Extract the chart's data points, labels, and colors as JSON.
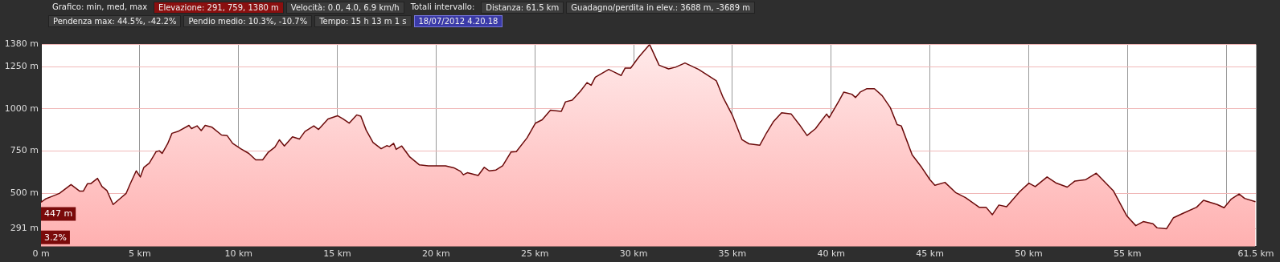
{
  "chart_data": {
    "type": "area",
    "annotations": [
      "Grafico: min, med, max",
      "Elevazione: 291, 759, 1380 m",
      "Velocità: 0.0, 4.0, 6.9 km/h",
      "Totali intervallo:",
      "Distanza: 61.5 km",
      "Guadagno/perdita in elev.: 3688 m, -3689 m",
      "Pendenza max: 44.5%, -42.2%",
      "Pendio medio: 10.3%, -10.7%",
      "Tempo: 15 h 13 m 1 s",
      "18/07/2012 4.20.18",
      {
        "text": "447 m",
        "x": 0,
        "y": 447
      },
      {
        "text": "3.2%",
        "x": 0
      }
    ],
    "x": [
      0,
      0.23,
      0.58,
      0.93,
      1.52,
      1.96,
      2.14,
      2.35,
      2.51,
      2.86,
      3.09,
      3.34,
      3.65,
      4.03,
      4.31,
      4.52,
      4.82,
      5.03,
      5.21,
      5.48,
      5.83,
      5.99,
      6.13,
      6.41,
      6.63,
      6.93,
      7.49,
      7.62,
      7.9,
      8.11,
      8.31,
      8.66,
      9.14,
      9.42,
      9.7,
      10.11,
      10.52,
      10.87,
      11.22,
      11.49,
      11.84,
      12.07,
      12.32,
      12.73,
      13.08,
      13.36,
      13.81,
      14.05,
      14.53,
      15.01,
      15.29,
      15.6,
      15.98,
      16.19,
      16.46,
      16.81,
      17.22,
      17.5,
      17.64,
      17.85,
      17.98,
      18.26,
      18.67,
      19.16,
      19.61,
      20.48,
      20.9,
      21.24,
      21.38,
      21.58,
      22.13,
      22.44,
      22.69,
      23.03,
      23.37,
      23.79,
      24.06,
      24.61,
      25.03,
      25.37,
      25.79,
      26.34,
      26.55,
      26.89,
      27.3,
      27.64,
      27.85,
      28.06,
      28.74,
      29.37,
      29.57,
      29.85,
      30.26,
      30.81,
      31.29,
      31.77,
      32.12,
      32.6,
      33.29,
      34.19,
      34.53,
      35.01,
      35.49,
      35.84,
      36.39,
      36.73,
      37.07,
      37.49,
      37.98,
      38.39,
      38.78,
      39.21,
      39.49,
      39.77,
      39.9,
      40.39,
      40.64,
      41.05,
      41.23,
      41.47,
      41.81,
      42.19,
      42.58,
      42.99,
      43.34,
      43.55,
      44.1,
      44.58,
      45,
      45.25,
      45.76,
      46.32,
      46.8,
      47.49,
      47.84,
      48.16,
      48.49,
      48.88,
      49.57,
      50.01,
      50.33,
      50.93,
      51.37,
      51.95,
      52.34,
      52.89,
      53.42,
      54.28,
      54.97,
      55.42,
      55.8,
      56.29,
      56.5,
      56.98,
      57.33,
      57.81,
      58.5,
      58.85,
      59.54,
      59.89,
      60.26,
      60.65,
      60.93,
      61.48
    ],
    "series": [
      {
        "color": "#6b0a0a",
        "values": [
          447,
          467,
          483,
          500,
          552,
          513,
          513,
          557,
          557,
          589,
          540,
          516,
          434,
          472,
          500,
          557,
          633,
          597,
          654,
          679,
          747,
          752,
          736,
          793,
          855,
          866,
          902,
          883,
          899,
          871,
          902,
          891,
          845,
          842,
          796,
          764,
          736,
          698,
          698,
          741,
          773,
          817,
          780,
          834,
          821,
          866,
          899,
          878,
          940,
          959,
          940,
          915,
          964,
          956,
          874,
          801,
          764,
          782,
          777,
          796,
          760,
          780,
          715,
          668,
          663,
          663,
          651,
          630,
          610,
          622,
          606,
          654,
          633,
          638,
          663,
          744,
          747,
          829,
          915,
          935,
          992,
          985,
          1041,
          1051,
          1103,
          1155,
          1139,
          1187,
          1233,
          1197,
          1241,
          1241,
          1306,
          1380,
          1258,
          1236,
          1246,
          1271,
          1233,
          1165,
          1067,
          959,
          817,
          793,
          785,
          858,
          923,
          977,
          969,
          907,
          842,
          883,
          927,
          969,
          948,
          1046,
          1099,
          1086,
          1067,
          1099,
          1119,
          1119,
          1078,
          1008,
          907,
          899,
          728,
          654,
          581,
          548,
          565,
          503,
          475,
          418,
          418,
          374,
          431,
          421,
          513,
          560,
          540,
          597,
          562,
          537,
          573,
          581,
          619,
          516,
          366,
          309,
          333,
          320,
          296,
          291,
          356,
          382,
          418,
          459,
          434,
          415,
          467,
          496,
          470,
          451
        ]
      }
    ],
    "xlim": [
      0,
      61.5
    ],
    "xticks": [
      {
        "value": 0,
        "label": "0 m"
      },
      {
        "value": 5,
        "label": "5 km"
      },
      {
        "value": 10,
        "label": "10 km"
      },
      {
        "value": 15,
        "label": "15 km"
      },
      {
        "value": 20,
        "label": "20 km"
      },
      {
        "value": 25,
        "label": "25 km"
      },
      {
        "value": 30,
        "label": "30 km"
      },
      {
        "value": 35,
        "label": "35 km"
      },
      {
        "value": 40,
        "label": "40 km"
      },
      {
        "value": 45,
        "label": "45 km"
      },
      {
        "value": 50,
        "label": "50 km"
      },
      {
        "value": 55,
        "label": "55 km"
      },
      {
        "value": 60,
        "label": null
      },
      {
        "value": 61.5,
        "label": "61.5 km"
      }
    ],
    "ylim": [
      185,
      1380
    ],
    "yticks": [
      {
        "value": 291,
        "label": "291 m"
      },
      {
        "value": 500,
        "label": "500 m"
      },
      {
        "value": 750,
        "label": "750 m"
      },
      {
        "value": 1000,
        "label": "1000 m"
      },
      {
        "value": 1250,
        "label": "1250 m"
      },
      {
        "value": 1380,
        "label": "1380 m"
      }
    ],
    "grid": true,
    "legend": false,
    "marker": "none",
    "line_style": "solid"
  }
}
